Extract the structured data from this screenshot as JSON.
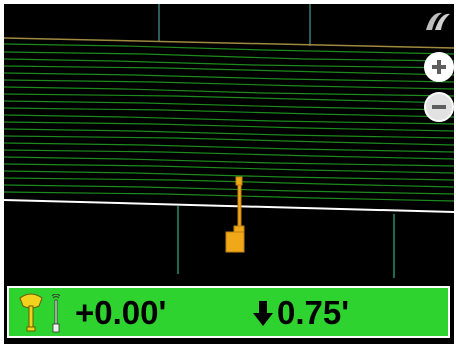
{
  "map": {
    "background": "#000000",
    "contour_color": "#1c8a1c",
    "edge_color": "#ffffff",
    "blade_color": "#f0a818"
  },
  "controls": {
    "zoom_in_icon": "plus-circle-icon",
    "zoom_out_icon": "minus-circle-icon",
    "logo_icon": "brand-swoosh-icon"
  },
  "status": {
    "background": "#2fd32f",
    "elevation_offset": "+0.00'",
    "cut_fill": "0.75'",
    "direction_icon": "down-arrow-icon",
    "antenna_icon": "gps-antenna-icon",
    "rover_icon": "rover-pole-icon"
  }
}
